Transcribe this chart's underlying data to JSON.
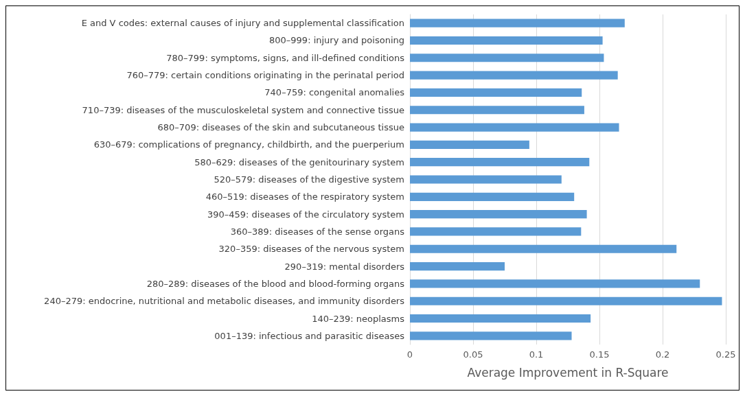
{
  "chart_data": {
    "type": "bar",
    "orientation": "horizontal",
    "xlabel": "Average Improvement in R-Square",
    "categories": [
      "E and V codes: external causes of injury and supplemental classification",
      "800–999: injury and poisoning",
      "780–799: symptoms, signs, and ill-defined conditions",
      "760–779: certain conditions originating in the perinatal period",
      "740–759: congenital anomalies",
      "710–739: diseases of the musculoskeletal system and connective tissue",
      "680–709: diseases of the skin and subcutaneous tissue",
      "630–679: complications of pregnancy, childbirth, and the puerperium",
      "580–629: diseases of the genitourinary system",
      "520–579: diseases of the digestive system",
      "460–519: diseases of the respiratory system",
      "390–459: diseases of the circulatory system",
      "360–389: diseases of the sense organs",
      "320–359: diseases of the nervous system",
      "290–319: mental disorders",
      "280–289: diseases of the blood and blood-forming organs",
      "240–279: endocrine, nutritional and metabolic diseases, and immunity disorders",
      "140–239: neoplasms",
      "001–139: infectious and parasitic diseases"
    ],
    "values": [
      0.17,
      0.1525,
      0.1535,
      0.1645,
      0.136,
      0.138,
      0.1655,
      0.0945,
      0.142,
      0.12,
      0.13,
      0.14,
      0.1355,
      0.211,
      0.075,
      0.2295,
      0.247,
      0.143,
      0.128
    ],
    "color": "#5b9bd5",
    "xlim": [
      0,
      0.25
    ],
    "xticks": [
      0,
      0.05,
      0.1,
      0.15,
      0.2,
      0.25
    ],
    "grid": "x"
  }
}
